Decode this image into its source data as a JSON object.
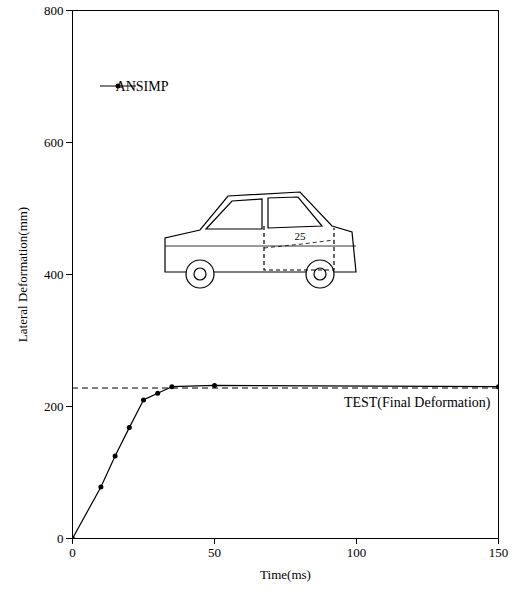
{
  "chart_data": {
    "type": "line",
    "xlabel": "Time(ms)",
    "ylabel": "Lateral Deformation(mm)",
    "xlim": [
      0,
      150
    ],
    "ylim": [
      0,
      800
    ],
    "xticks": [
      0,
      50,
      100,
      150
    ],
    "yticks": [
      0,
      200,
      400,
      600,
      800
    ],
    "legend": "top-left",
    "series": [
      {
        "name": "ANSIMP",
        "color": "#000000",
        "marker": "circle",
        "line_style": "solid",
        "x": [
          0,
          10,
          15,
          20,
          25,
          30,
          35,
          50,
          150
        ],
        "values": [
          0,
          78,
          125,
          168,
          210,
          220,
          230,
          232,
          230
        ]
      }
    ],
    "reference_lines": [
      {
        "y": 228,
        "label": "TEST(Final Deformation)",
        "line_style": "dashed",
        "color": "#000000"
      }
    ],
    "annotations": [
      {
        "text": "25"
      }
    ]
  }
}
